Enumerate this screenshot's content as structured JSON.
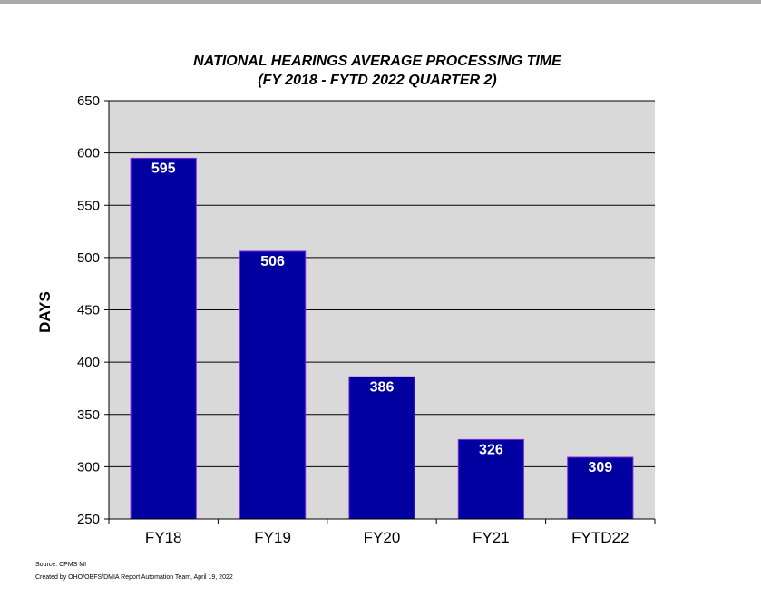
{
  "chart_data": {
    "type": "bar",
    "title": "NATIONAL HEARINGS AVERAGE PROCESSING TIME",
    "subtitle": "(FY 2018 - FYTD 2022 QUARTER 2)",
    "xlabel": "",
    "ylabel": "DAYS",
    "categories": [
      "FY18",
      "FY19",
      "FY20",
      "FY21",
      "FYTD22"
    ],
    "values": [
      595,
      506,
      386,
      326,
      309
    ],
    "ylim": [
      250,
      650
    ],
    "yticks": [
      250,
      300,
      350,
      400,
      450,
      500,
      550,
      600,
      650
    ],
    "grid": true,
    "legend": "none",
    "bar_color": "#0000a0",
    "bar_edge_color": "#8a2be2",
    "plot_background": "#d9d9d9"
  },
  "footer": {
    "source": "Source: CPMS MI",
    "created_by": "Created by OHO/OBFS/DMIA Report Automation Team, April 19, 2022"
  }
}
